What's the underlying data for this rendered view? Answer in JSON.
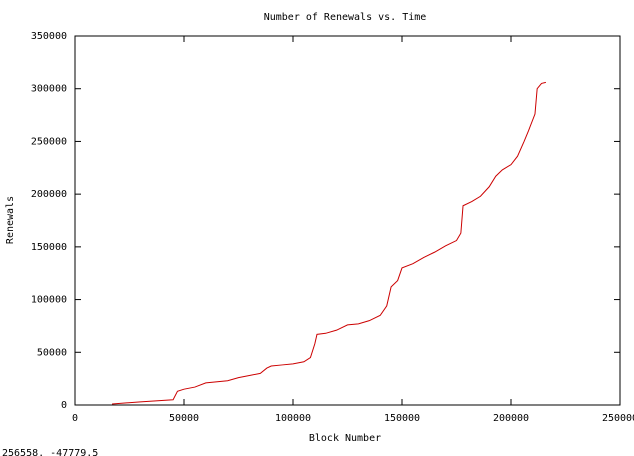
{
  "chart_data": {
    "type": "line",
    "title": "Number of Renewals vs. Time",
    "x_label": "Block Number",
    "y_label": "Renewals",
    "x": [
      17000,
      30000,
      45000,
      47000,
      50000,
      55000,
      60000,
      70000,
      75000,
      80000,
      85000,
      88000,
      90000,
      95000,
      100000,
      105000,
      108000,
      110000,
      111000,
      115000,
      120000,
      125000,
      130000,
      135000,
      140000,
      143000,
      145000,
      148000,
      150000,
      155000,
      160000,
      165000,
      170000,
      175000,
      177000,
      178000,
      182000,
      186000,
      190000,
      193000,
      196000,
      200000,
      203000,
      206000,
      208000,
      211000,
      212000,
      214000,
      216000
    ],
    "series": [
      {
        "color": "#cc0000",
        "values": [
          1000,
          3000,
          5000,
          13000,
          15000,
          17000,
          21000,
          23000,
          26000,
          28000,
          30000,
          35000,
          37000,
          38000,
          39000,
          41000,
          45000,
          58000,
          67000,
          68000,
          71000,
          76000,
          77000,
          80000,
          85000,
          94000,
          112000,
          118000,
          130000,
          134000,
          140000,
          145000,
          151000,
          156000,
          163000,
          189000,
          193000,
          198000,
          207000,
          217000,
          223000,
          228000,
          236000,
          250000,
          260000,
          276000,
          300000,
          305000,
          306000
        ]
      }
    ],
    "xlim": [
      0,
      250000
    ],
    "xticks": [
      0,
      50000,
      100000,
      150000,
      200000,
      250000
    ],
    "ylim": [
      0,
      350000
    ],
    "yticks": [
      0,
      50000,
      100000,
      150000,
      200000,
      250000,
      300000,
      350000
    ],
    "grid": false
  },
  "status": "256558, -47779.5"
}
